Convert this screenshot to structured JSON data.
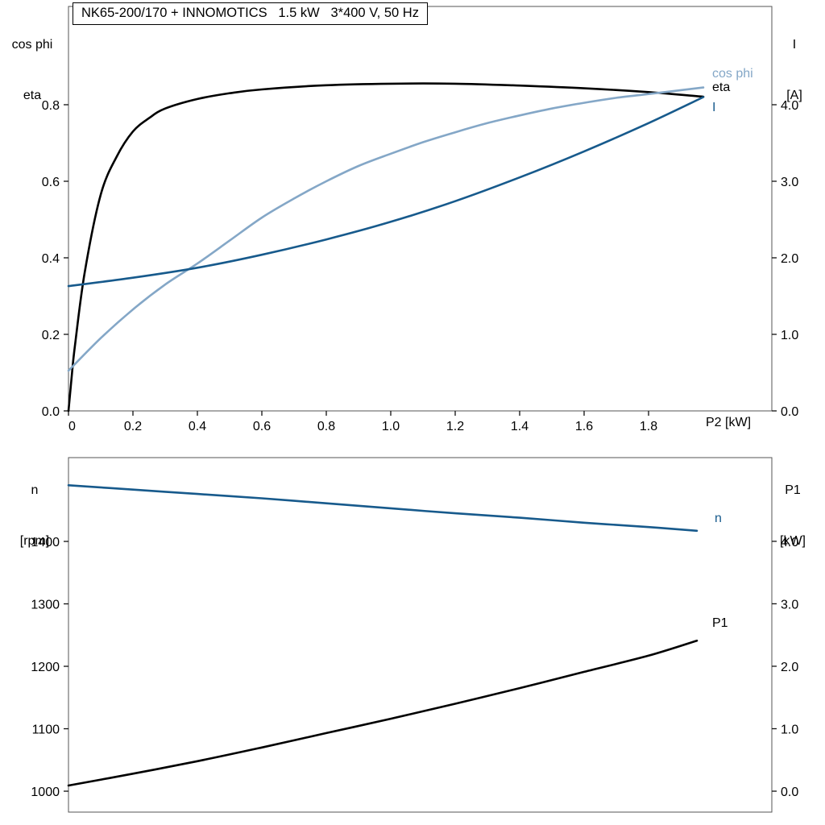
{
  "colors": {
    "black_curve": "#000000",
    "dark_blue_curve": "#175a8c",
    "light_blue_curve": "#84a7c7",
    "frame": "#555555"
  },
  "chart_data": [
    {
      "type": "line",
      "title": "NK65-200/170 + INNOMOTICS   1.5 kW   3*400 V, 50 Hz",
      "x_axis": {
        "title": "P2 [kW]",
        "tick_labels": [
          "0",
          "0.2",
          "0.4",
          "0.6",
          "0.8",
          "1.0",
          "1.2",
          "1.4",
          "1.6",
          "1.8"
        ],
        "tick_values": [
          0,
          0.2,
          0.4,
          0.6,
          0.8,
          1.0,
          1.2,
          1.4,
          1.6,
          1.8
        ],
        "lim": [
          0,
          2.1825
        ]
      },
      "left_axis": {
        "title": [
          "cos phi",
          "eta"
        ],
        "tick_labels": [
          "0.0",
          "0.2",
          "0.4",
          "0.6",
          "0.8"
        ],
        "tick_values": [
          0,
          0.2,
          0.4,
          0.6,
          0.8
        ],
        "lim": [
          0,
          1.0568
        ]
      },
      "right_axis": {
        "title": [
          "I",
          "[A]"
        ],
        "tick_labels": [
          "0.0",
          "1.0",
          "2.0",
          "3.0",
          "4.0"
        ],
        "tick_values": [
          0,
          1,
          2,
          3,
          4
        ],
        "lim": [
          0,
          5.284
        ]
      },
      "series": [
        {
          "name": "eta",
          "label": "eta",
          "axis": "left",
          "color": "#000000",
          "x": [
            0,
            0.01,
            0.02,
            0.05,
            0.1,
            0.15,
            0.2,
            0.25,
            0.3,
            0.4,
            0.5,
            0.6,
            0.8,
            1.0,
            1.2,
            1.4,
            1.6,
            1.8,
            1.97
          ],
          "y": [
            0,
            0.09,
            0.17,
            0.36,
            0.565,
            0.665,
            0.73,
            0.765,
            0.79,
            0.815,
            0.83,
            0.84,
            0.851,
            0.855,
            0.855,
            0.85,
            0.843,
            0.833,
            0.821
          ]
        },
        {
          "name": "cos phi",
          "label": "cos phi",
          "axis": "left",
          "color": "#84a7c7",
          "x": [
            0,
            0.1,
            0.2,
            0.3,
            0.4,
            0.5,
            0.6,
            0.7,
            0.8,
            0.9,
            1.0,
            1.1,
            1.2,
            1.3,
            1.4,
            1.5,
            1.6,
            1.7,
            1.8,
            1.9,
            1.97
          ],
          "y": [
            0.105,
            0.19,
            0.265,
            0.33,
            0.385,
            0.445,
            0.505,
            0.555,
            0.6,
            0.64,
            0.672,
            0.702,
            0.728,
            0.752,
            0.772,
            0.79,
            0.805,
            0.818,
            0.828,
            0.838,
            0.845
          ]
        },
        {
          "name": "I",
          "label": "I",
          "axis": "right",
          "color": "#175a8c",
          "x": [
            0,
            0.2,
            0.4,
            0.6,
            0.8,
            1.0,
            1.2,
            1.4,
            1.6,
            1.8,
            1.97
          ],
          "y": [
            1.63,
            1.74,
            1.87,
            2.04,
            2.24,
            2.47,
            2.74,
            3.05,
            3.39,
            3.76,
            4.1
          ]
        }
      ]
    },
    {
      "type": "line",
      "x_axis": {
        "tick_labels": [],
        "tick_values": [],
        "lim": [
          0,
          2.1825
        ]
      },
      "left_axis": {
        "title": [
          "n",
          "[rpm]"
        ],
        "tick_labels": [
          "1000",
          "1100",
          "1200",
          "1300",
          "1400"
        ],
        "tick_values": [
          1000,
          1100,
          1200,
          1300,
          1400
        ],
        "lim": [
          966.5,
          1534.2
        ]
      },
      "right_axis": {
        "title": [
          "P1",
          "[kW]"
        ],
        "tick_labels": [
          "0.0",
          "1.0",
          "2.0",
          "3.0",
          "4.0"
        ],
        "tick_values": [
          0,
          1,
          2,
          3,
          4
        ],
        "lim": [
          -0.335,
          5.34
        ]
      },
      "series": [
        {
          "name": "n",
          "label": "n",
          "axis": "left",
          "color": "#175a8c",
          "x": [
            0,
            0.2,
            0.4,
            0.6,
            0.8,
            1.0,
            1.2,
            1.4,
            1.6,
            1.8,
            1.95
          ],
          "y": [
            1490,
            1483,
            1476,
            1469,
            1461,
            1453,
            1445,
            1438,
            1430,
            1423,
            1417
          ]
        },
        {
          "name": "P1",
          "label": "P1",
          "axis": "right",
          "color": "#000000",
          "x": [
            0,
            0.2,
            0.4,
            0.6,
            0.8,
            1.0,
            1.2,
            1.4,
            1.6,
            1.8,
            1.95
          ],
          "y": [
            0.09,
            0.28,
            0.48,
            0.7,
            0.93,
            1.16,
            1.4,
            1.65,
            1.91,
            2.17,
            2.41
          ]
        }
      ]
    }
  ]
}
